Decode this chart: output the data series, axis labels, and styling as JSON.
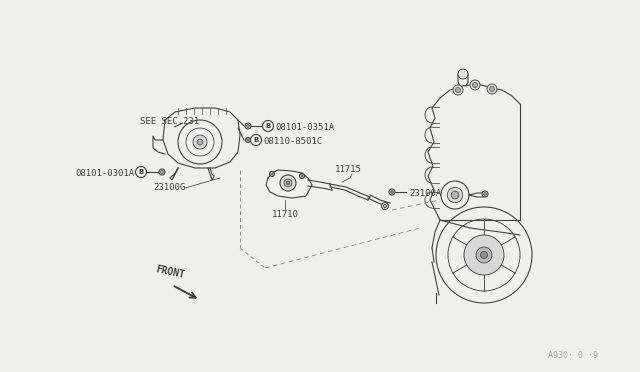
{
  "background_color": "#f0f0eb",
  "line_color": "#404040",
  "dash_color": "#909090",
  "fig_width": 6.4,
  "fig_height": 3.72,
  "dpi": 100,
  "watermark": "A930· 0 ·9",
  "labels": {
    "see_sec": "SEE SEC.231",
    "b1_part": "08101-0351A",
    "b2_part": "08110-8501C",
    "b3_part": "08101-0301A",
    "l11715": "11715",
    "l23100A": "23100A",
    "l23100G": "23100G",
    "l11710": "11710",
    "front": "FRONT"
  }
}
